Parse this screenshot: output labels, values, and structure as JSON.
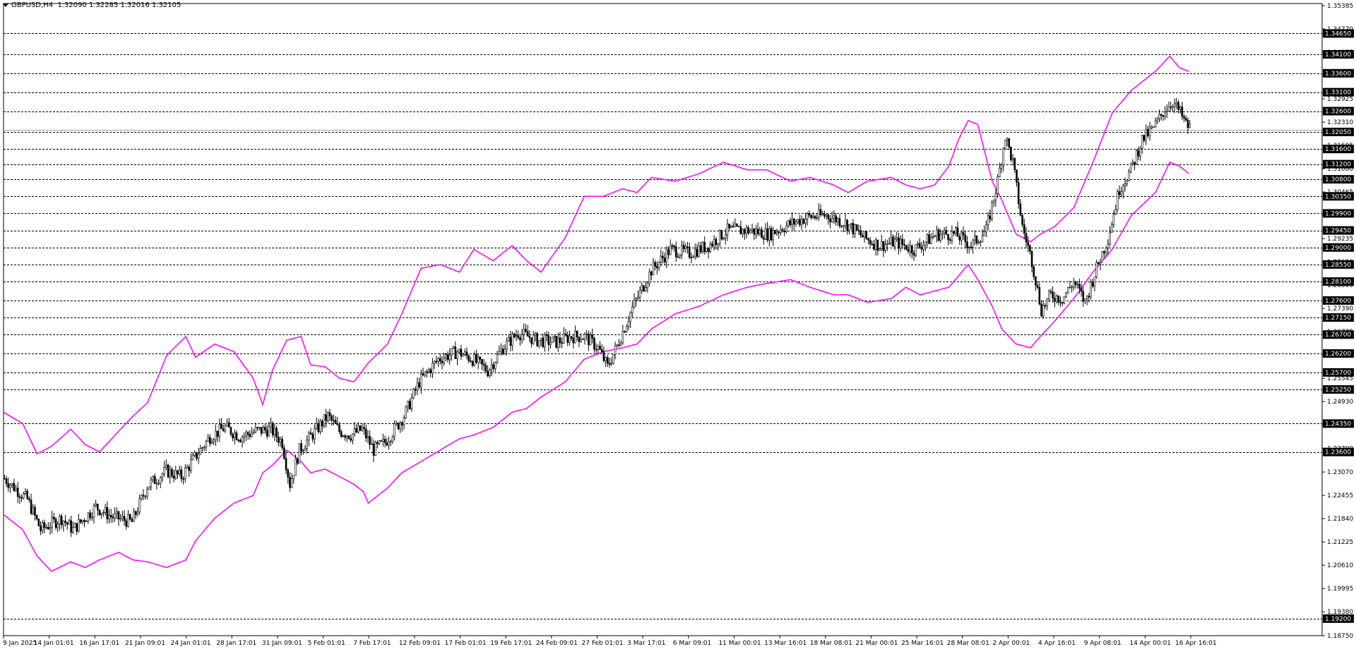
{
  "header": {
    "symbol": "GBPUSD,H4",
    "values": "1.32090 1.32285 1.32016 1.32105"
  },
  "colors": {
    "background": "#ffffff",
    "grid": "#000000",
    "bands": "#ff00ff",
    "candles": "#000000"
  },
  "chart_data": {
    "type": "candlestick",
    "ylim": [
      1.1875,
      1.35385
    ],
    "y_ticks": [
      "1.35385",
      "1.34770",
      "1.34155",
      "1.33540",
      "1.32925",
      "1.32310",
      "1.31695",
      "1.31080",
      "1.30465",
      "1.29850",
      "1.29235",
      "1.28620",
      "1.28005",
      "1.27390",
      "1.26775",
      "1.26160",
      "1.25545",
      "1.24930",
      "1.24315",
      "1.23700",
      "1.23070",
      "1.22455",
      "1.21840",
      "1.21225",
      "1.20610",
      "1.19995",
      "1.19380",
      "1.18750"
    ],
    "dashed_levels": [
      "1.34650",
      "1.34100",
      "1.33600",
      "1.33100",
      "1.32600",
      "1.32050",
      "1.31600",
      "1.31200",
      "1.30800",
      "1.30350",
      "1.29900",
      "1.29450",
      "1.29000",
      "1.28550",
      "1.28100",
      "1.27600",
      "1.27150",
      "1.26700",
      "1.26200",
      "1.25700",
      "1.25250",
      "1.24350",
      "1.23600",
      "1.19200"
    ],
    "current_price": "1.32105",
    "x_labels": [
      "9 Jan 2025",
      "14 Jan 01:01",
      "16 Jan 17:01",
      "21 Jan 09:01",
      "24 Jan 01:01",
      "28 Jan 17:01",
      "31 Jan 09:01",
      "5 Feb 01:01",
      "7 Feb 17:01",
      "12 Feb 09:01",
      "17 Feb 01:01",
      "19 Feb 17:01",
      "24 Feb 09:01",
      "27 Feb 01:01",
      "3 Mar 17:01",
      "6 Mar 09:01",
      "11 Mar 00:01",
      "13 Mar 16:01",
      "18 Mar 08:01",
      "21 Mar 00:01",
      "25 Mar 16:01",
      "28 Mar 08:01",
      "2 Apr 00:01",
      "4 Apr 16:01",
      "9 Apr 08:01",
      "14 Apr 00:01",
      "16 Apr 16:01"
    ],
    "close_path": [
      [
        0,
        1.229
      ],
      [
        12,
        1.2235
      ],
      [
        19,
        1.2155
      ],
      [
        30,
        1.2185
      ],
      [
        36,
        1.2155
      ],
      [
        48,
        1.2215
      ],
      [
        56,
        1.219
      ],
      [
        67,
        1.2175
      ],
      [
        75,
        1.227
      ],
      [
        85,
        1.231
      ],
      [
        93,
        1.2295
      ],
      [
        100,
        1.2345
      ],
      [
        108,
        1.24
      ],
      [
        116,
        1.2425
      ],
      [
        124,
        1.24
      ],
      [
        132,
        1.2415
      ],
      [
        140,
        1.242
      ],
      [
        146,
        1.2385
      ],
      [
        150,
        1.2275
      ],
      [
        155,
        1.2365
      ],
      [
        160,
        1.2395
      ],
      [
        170,
        1.2455
      ],
      [
        176,
        1.2415
      ],
      [
        182,
        1.2405
      ],
      [
        188,
        1.242
      ],
      [
        194,
        1.2365
      ],
      [
        200,
        1.2385
      ],
      [
        210,
        1.2455
      ],
      [
        218,
        1.2545
      ],
      [
        228,
        1.2605
      ],
      [
        238,
        1.2625
      ],
      [
        246,
        1.2605
      ],
      [
        254,
        1.2575
      ],
      [
        262,
        1.2635
      ],
      [
        270,
        1.2675
      ],
      [
        280,
        1.2655
      ],
      [
        290,
        1.265
      ],
      [
        298,
        1.2665
      ],
      [
        305,
        1.2665
      ],
      [
        312,
        1.2635
      ],
      [
        317,
        1.2585
      ],
      [
        322,
        1.264
      ],
      [
        330,
        1.274
      ],
      [
        340,
        1.284
      ],
      [
        350,
        1.2895
      ],
      [
        360,
        1.2885
      ],
      [
        370,
        1.2905
      ],
      [
        380,
        1.2945
      ],
      [
        392,
        1.2945
      ],
      [
        402,
        1.2935
      ],
      [
        412,
        1.296
      ],
      [
        422,
        1.298
      ],
      [
        432,
        1.2985
      ],
      [
        442,
        1.2965
      ],
      [
        452,
        1.2925
      ],
      [
        460,
        1.2905
      ],
      [
        468,
        1.2915
      ],
      [
        478,
        1.2895
      ],
      [
        490,
        1.2935
      ],
      [
        500,
        1.2935
      ],
      [
        508,
        1.2905
      ],
      [
        516,
        1.2945
      ],
      [
        522,
        1.3075
      ],
      [
        526,
        1.3195
      ],
      [
        530,
        1.3125
      ],
      [
        535,
        1.2955
      ],
      [
        540,
        1.2865
      ],
      [
        545,
        1.2735
      ],
      [
        550,
        1.2775
      ],
      [
        556,
        1.2765
      ],
      [
        562,
        1.281
      ],
      [
        568,
        1.2755
      ],
      [
        574,
        1.2845
      ],
      [
        580,
        1.2925
      ],
      [
        586,
        1.3055
      ],
      [
        592,
        1.3105
      ],
      [
        598,
        1.3185
      ],
      [
        604,
        1.3215
      ],
      [
        610,
        1.3265
      ],
      [
        614,
        1.3285
      ],
      [
        618,
        1.3255
      ],
      [
        621,
        1.3225
      ],
      [
        624,
        1.32105
      ]
    ],
    "upper_band_path": [
      [
        0,
        1.2465
      ],
      [
        8,
        1.2435
      ],
      [
        14,
        1.2355
      ],
      [
        20,
        1.2375
      ],
      [
        28,
        1.242
      ],
      [
        34,
        1.238
      ],
      [
        40,
        1.236
      ],
      [
        48,
        1.2415
      ],
      [
        54,
        1.2455
      ],
      [
        60,
        1.249
      ],
      [
        68,
        1.2615
      ],
      [
        76,
        1.2665
      ],
      [
        80,
        1.261
      ],
      [
        88,
        1.2645
      ],
      [
        96,
        1.2625
      ],
      [
        104,
        1.2555
      ],
      [
        108,
        1.2485
      ],
      [
        112,
        1.2575
      ],
      [
        118,
        1.2655
      ],
      [
        124,
        1.2665
      ],
      [
        128,
        1.259
      ],
      [
        134,
        1.2585
      ],
      [
        140,
        1.2555
      ],
      [
        146,
        1.2545
      ],
      [
        152,
        1.2595
      ],
      [
        160,
        1.2645
      ],
      [
        166,
        1.2725
      ],
      [
        174,
        1.2845
      ],
      [
        182,
        1.2855
      ],
      [
        190,
        1.2835
      ],
      [
        196,
        1.2895
      ],
      [
        204,
        1.2865
      ],
      [
        212,
        1.2905
      ],
      [
        218,
        1.2865
      ],
      [
        224,
        1.2835
      ],
      [
        234,
        1.2925
      ],
      [
        242,
        1.3035
      ],
      [
        250,
        1.3035
      ],
      [
        258,
        1.3055
      ],
      [
        264,
        1.3045
      ],
      [
        270,
        1.3085
      ],
      [
        280,
        1.3075
      ],
      [
        290,
        1.3095
      ],
      [
        300,
        1.3125
      ],
      [
        310,
        1.3105
      ],
      [
        318,
        1.3105
      ],
      [
        328,
        1.3075
      ],
      [
        336,
        1.3085
      ],
      [
        346,
        1.3065
      ],
      [
        352,
        1.3045
      ],
      [
        360,
        1.3075
      ],
      [
        370,
        1.3085
      ],
      [
        376,
        1.3065
      ],
      [
        382,
        1.3055
      ],
      [
        388,
        1.3065
      ],
      [
        394,
        1.3115
      ],
      [
        398,
        1.3185
      ],
      [
        402,
        1.3235
      ],
      [
        406,
        1.3225
      ],
      [
        412,
        1.3075
      ],
      [
        416,
        1.3025
      ],
      [
        422,
        1.2935
      ],
      [
        428,
        1.2915
      ],
      [
        432,
        1.2935
      ],
      [
        438,
        1.2955
      ],
      [
        446,
        1.3005
      ],
      [
        454,
        1.3125
      ],
      [
        462,
        1.3255
      ],
      [
        470,
        1.3315
      ],
      [
        480,
        1.3365
      ],
      [
        486,
        1.3405
      ],
      [
        490,
        1.3375
      ],
      [
        494,
        1.3365
      ]
    ],
    "lower_band_path": [
      [
        0,
        1.2195
      ],
      [
        8,
        1.2155
      ],
      [
        14,
        1.2085
      ],
      [
        20,
        1.2045
      ],
      [
        28,
        1.207
      ],
      [
        34,
        1.2055
      ],
      [
        40,
        1.2075
      ],
      [
        48,
        1.2095
      ],
      [
        54,
        1.2075
      ],
      [
        60,
        1.207
      ],
      [
        68,
        1.2055
      ],
      [
        76,
        1.2075
      ],
      [
        80,
        1.2125
      ],
      [
        88,
        1.2185
      ],
      [
        96,
        1.2225
      ],
      [
        104,
        1.2245
      ],
      [
        108,
        1.2305
      ],
      [
        112,
        1.2325
      ],
      [
        118,
        1.2365
      ],
      [
        124,
        1.2335
      ],
      [
        128,
        1.2305
      ],
      [
        134,
        1.2315
      ],
      [
        140,
        1.2295
      ],
      [
        146,
        1.2275
      ],
      [
        150,
        1.2255
      ],
      [
        152,
        1.2225
      ],
      [
        160,
        1.2265
      ],
      [
        166,
        1.2305
      ],
      [
        174,
        1.2335
      ],
      [
        182,
        1.2365
      ],
      [
        190,
        1.2395
      ],
      [
        196,
        1.2405
      ],
      [
        204,
        1.2425
      ],
      [
        212,
        1.2465
      ],
      [
        218,
        1.2475
      ],
      [
        224,
        1.2505
      ],
      [
        234,
        1.2545
      ],
      [
        242,
        1.2605
      ],
      [
        250,
        1.2625
      ],
      [
        258,
        1.2635
      ],
      [
        264,
        1.2645
      ],
      [
        270,
        1.2685
      ],
      [
        280,
        1.2725
      ],
      [
        290,
        1.2745
      ],
      [
        300,
        1.2775
      ],
      [
        310,
        1.2795
      ],
      [
        318,
        1.2805
      ],
      [
        328,
        1.2815
      ],
      [
        336,
        1.2795
      ],
      [
        346,
        1.2775
      ],
      [
        352,
        1.2775
      ],
      [
        360,
        1.2755
      ],
      [
        370,
        1.2765
      ],
      [
        376,
        1.2795
      ],
      [
        382,
        1.2775
      ],
      [
        388,
        1.2785
      ],
      [
        394,
        1.2795
      ],
      [
        398,
        1.2825
      ],
      [
        402,
        1.2855
      ],
      [
        406,
        1.2815
      ],
      [
        412,
        1.2745
      ],
      [
        416,
        1.2685
      ],
      [
        422,
        1.2645
      ],
      [
        428,
        1.2635
      ],
      [
        432,
        1.2665
      ],
      [
        438,
        1.2705
      ],
      [
        446,
        1.2765
      ],
      [
        454,
        1.2835
      ],
      [
        462,
        1.2895
      ],
      [
        470,
        1.2985
      ],
      [
        480,
        1.3045
      ],
      [
        486,
        1.3125
      ],
      [
        490,
        1.3115
      ],
      [
        494,
        1.3095
      ]
    ]
  }
}
